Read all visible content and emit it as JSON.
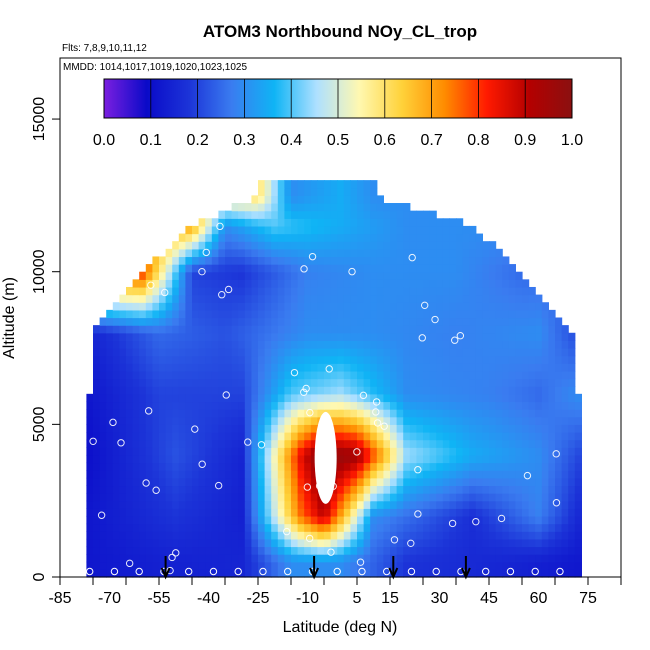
{
  "chart_data": {
    "type": "heatmap",
    "title": "ATOM3 Northbound NOy_CL_trop",
    "flights_note": "Flts: 7,8,9,10,11,12",
    "dates_note": "MMDD: 1014,1017,1019,1020,1023,1025",
    "xlabel": "Latitude (deg N)",
    "ylabel": "Altitude (m)",
    "xlim": [
      -85,
      85
    ],
    "ylim": [
      0,
      17000
    ],
    "x_ticks": [
      -85,
      -70,
      -55,
      -40,
      -25,
      -10,
      5,
      15,
      30,
      45,
      60,
      75
    ],
    "y_ticks": [
      0,
      5000,
      10000,
      15000
    ],
    "colorbar": {
      "min": 0.0,
      "max": 1.0,
      "tick_labels": [
        "0.0",
        "0.1",
        "0.2",
        "0.3",
        "0.4",
        "0.5",
        "0.6",
        "0.7",
        "0.8",
        "0.9",
        "1.0"
      ],
      "colors": [
        "#7b1fe0",
        "#0a0ac8",
        "#1c34d8",
        "#3a7cf0",
        "#0fb4f5",
        "#aee0ff",
        "#fff8b0",
        "#ffd23a",
        "#ff8c00",
        "#ff1a00",
        "#b40000",
        "#8b1010"
      ]
    },
    "profile_markers_lat": [
      -53,
      -8,
      16,
      38
    ],
    "approximate_layers": [
      {
        "alt": 500,
        "lat_range": [
          -76,
          73
        ],
        "values_by_lat": [
          [
            -76,
            0.12
          ],
          [
            -55,
            0.14
          ],
          [
            -30,
            0.15
          ],
          [
            -15,
            0.3
          ],
          [
            0,
            0.3
          ],
          [
            20,
            0.18
          ],
          [
            50,
            0.15
          ],
          [
            73,
            0.12
          ]
        ]
      },
      {
        "alt": 2000,
        "lat_range": [
          -76,
          73
        ],
        "values_by_lat": [
          [
            -76,
            0.12
          ],
          [
            -50,
            0.18
          ],
          [
            -30,
            0.14
          ],
          [
            -12,
            0.75
          ],
          [
            -5,
            0.9
          ],
          [
            10,
            0.3
          ],
          [
            40,
            0.17
          ],
          [
            60,
            0.28
          ],
          [
            73,
            0.15
          ]
        ]
      },
      {
        "alt": 4000,
        "lat_range": [
          -77,
          73
        ],
        "values_by_lat": [
          [
            -77,
            0.1
          ],
          [
            -50,
            0.22
          ],
          [
            -30,
            0.15
          ],
          [
            -12,
            0.85
          ],
          [
            -6,
            1.0
          ],
          [
            5,
            0.95
          ],
          [
            20,
            0.45
          ],
          [
            40,
            0.35
          ],
          [
            60,
            0.3
          ],
          [
            73,
            0.2
          ]
        ]
      },
      {
        "alt": 6000,
        "lat_range": [
          -76,
          72
        ],
        "values_by_lat": [
          [
            -76,
            0.12
          ],
          [
            -55,
            0.2
          ],
          [
            -30,
            0.2
          ],
          [
            -15,
            0.4
          ],
          [
            0,
            0.45
          ],
          [
            20,
            0.3
          ],
          [
            45,
            0.28
          ],
          [
            60,
            0.25
          ],
          [
            72,
            0.3
          ]
        ]
      },
      {
        "alt": 8000,
        "lat_range": [
          -75,
          70
        ],
        "values_by_lat": [
          [
            -75,
            0.15
          ],
          [
            -55,
            0.25
          ],
          [
            -35,
            0.22
          ],
          [
            -10,
            0.3
          ],
          [
            10,
            0.3
          ],
          [
            35,
            0.28
          ],
          [
            60,
            0.3
          ],
          [
            70,
            0.22
          ]
        ]
      },
      {
        "alt": 10000,
        "lat_range": [
          -60,
          55
        ],
        "values_by_lat": [
          [
            -60,
            0.8
          ],
          [
            -45,
            0.2
          ],
          [
            -30,
            0.18
          ],
          [
            -10,
            0.28
          ],
          [
            10,
            0.3
          ],
          [
            35,
            0.3
          ],
          [
            55,
            0.25
          ]
        ]
      },
      {
        "alt": 11500,
        "lat_range": [
          -45,
          40
        ],
        "values_by_lat": [
          [
            -45,
            0.7
          ],
          [
            -35,
            0.3
          ],
          [
            -20,
            0.4
          ],
          [
            0,
            0.35
          ],
          [
            20,
            0.3
          ],
          [
            40,
            0.3
          ]
        ]
      },
      {
        "alt": 12500,
        "lat_range": [
          -25,
          10
        ],
        "values_by_lat": [
          [
            -25,
            0.6
          ],
          [
            -15,
            0.3
          ],
          [
            0,
            0.35
          ],
          [
            10,
            0.3
          ]
        ]
      }
    ]
  }
}
